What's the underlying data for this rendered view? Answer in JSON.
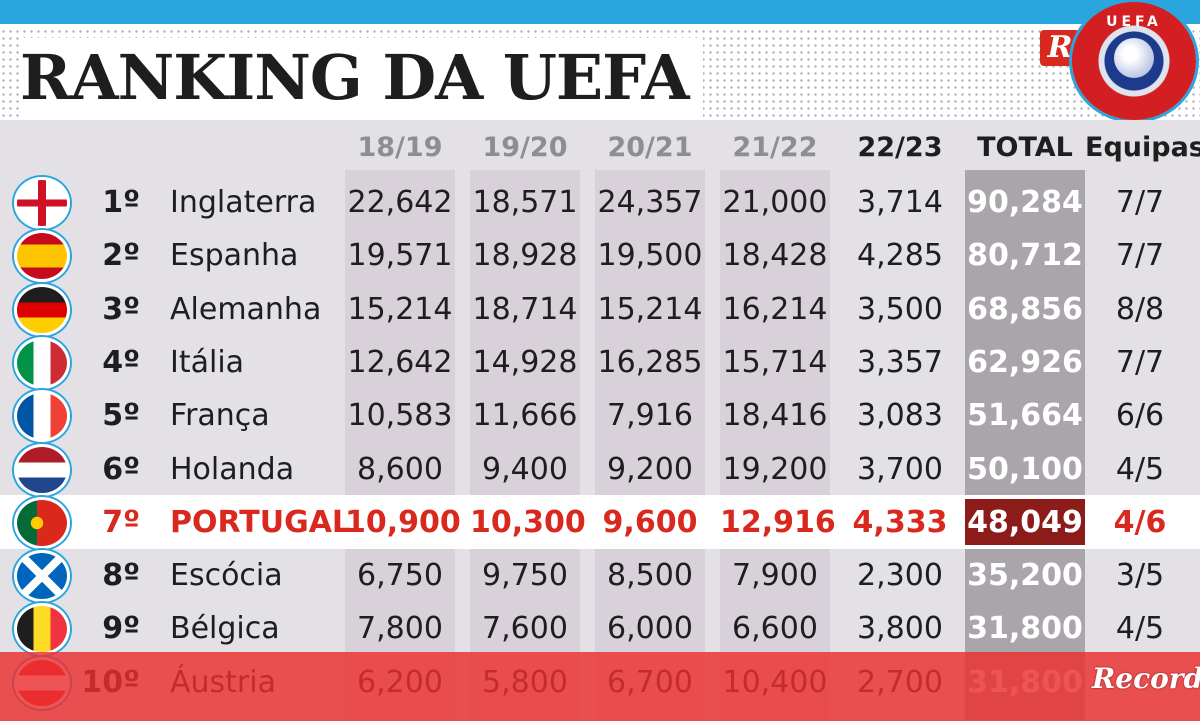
{
  "title": "RANKING DA UEFA",
  "logos": {
    "brand_letter": "R",
    "uefa": "UEFA",
    "watermark": "Record"
  },
  "colors": {
    "accent_blue": "#2aa6df",
    "highlight_red": "#d9281e",
    "total_column": "#a9a5ab",
    "portugal_total": "#8b1c19"
  },
  "chart_data": {
    "type": "table",
    "title": "RANKING DA UEFA",
    "columns": [
      "",
      "",
      "18/19",
      "19/20",
      "20/21",
      "21/22",
      "22/23",
      "TOTAL",
      "Equipas"
    ],
    "highlighted_row": "PORTUGAL",
    "rows": [
      {
        "flag": "england-flag-icon",
        "pos": "1º",
        "country": "Inglaterra",
        "values": [
          "22,642",
          "18,571",
          "24,357",
          "21,000",
          "3,714"
        ],
        "total": "90,284",
        "teams": "7/7"
      },
      {
        "flag": "spain-flag-icon",
        "pos": "2º",
        "country": "Espanha",
        "values": [
          "19,571",
          "18,928",
          "19,500",
          "18,428",
          "4,285"
        ],
        "total": "80,712",
        "teams": "7/7"
      },
      {
        "flag": "germany-flag-icon",
        "pos": "3º",
        "country": "Alemanha",
        "values": [
          "15,214",
          "18,714",
          "15,214",
          "16,214",
          "3,500"
        ],
        "total": "68,856",
        "teams": "8/8"
      },
      {
        "flag": "italy-flag-icon",
        "pos": "4º",
        "country": "Itália",
        "values": [
          "12,642",
          "14,928",
          "16,285",
          "15,714",
          "3,357"
        ],
        "total": "62,926",
        "teams": "7/7"
      },
      {
        "flag": "france-flag-icon",
        "pos": "5º",
        "country": "França",
        "values": [
          "10,583",
          "11,666",
          "7,916",
          "18,416",
          "3,083"
        ],
        "total": "51,664",
        "teams": "6/6"
      },
      {
        "flag": "netherlands-flag-icon",
        "pos": "6º",
        "country": "Holanda",
        "values": [
          "8,600",
          "9,400",
          "9,200",
          "19,200",
          "3,700"
        ],
        "total": "50,100",
        "teams": "4/5"
      },
      {
        "flag": "portugal-flag-icon",
        "pos": "7º",
        "country": "PORTUGAL",
        "values": [
          "10,900",
          "10,300",
          "9,600",
          "12,916",
          "4,333"
        ],
        "total": "48,049",
        "teams": "4/6"
      },
      {
        "flag": "scotland-flag-icon",
        "pos": "8º",
        "country": "Escócia",
        "values": [
          "6,750",
          "9,750",
          "8,500",
          "7,900",
          "2,300"
        ],
        "total": "35,200",
        "teams": "3/5"
      },
      {
        "flag": "belgium-flag-icon",
        "pos": "9º",
        "country": "Bélgica",
        "values": [
          "7,800",
          "7,600",
          "6,000",
          "6,600",
          "3,800"
        ],
        "total": "31,800",
        "teams": "4/5"
      },
      {
        "flag": "austria-flag-icon",
        "pos": "10º",
        "country": "Áustria",
        "values": [
          "6,200",
          "5,800",
          "6,700",
          "10,400",
          "2,700"
        ],
        "total": "31,800",
        "teams": ""
      }
    ]
  }
}
